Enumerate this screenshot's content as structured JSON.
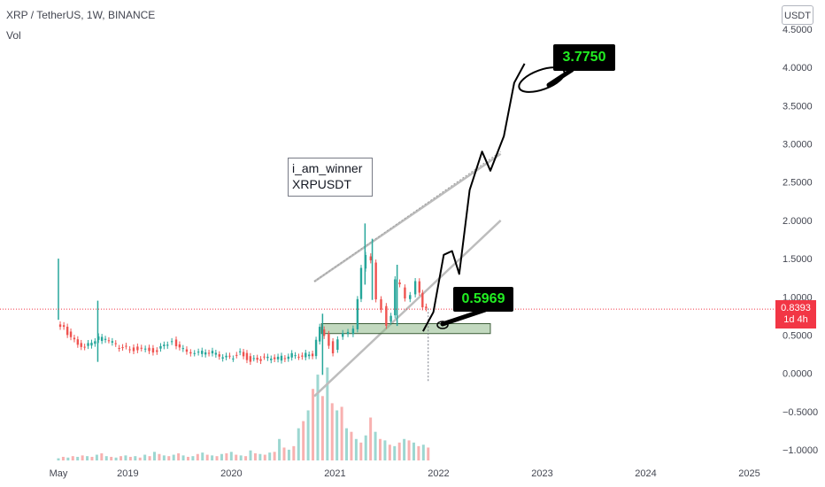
{
  "header": {
    "title": "XRP / TetherUS, 1W, BINANCE",
    "volume_label": "Vol"
  },
  "currency_button": "USDT",
  "current_price": {
    "value": "0.8393",
    "countdown": "1d 4h",
    "color": "#f23645"
  },
  "annotations": {
    "note_line1": "i_am_winner",
    "note_line2": "XRPUSDT",
    "support_label": "0.5969",
    "target_label": "3.7750"
  },
  "chart_data": {
    "type": "candlestick",
    "title": "XRP / TetherUS, 1W, BINANCE",
    "x_tick_labels": [
      "May",
      "2019",
      "2020",
      "2021",
      "2022",
      "2023",
      "2024",
      "2025"
    ],
    "y_tick_labels": [
      "4.5000",
      "4.0000",
      "3.5000",
      "3.0000",
      "2.5000",
      "2.0000",
      "1.5000",
      "1.0000",
      "0.5000",
      "0.0000",
      "−0.5000",
      "−1.0000"
    ],
    "y_range": [
      -1.0,
      4.5
    ],
    "x_range": [
      2018.33,
      2025.5
    ],
    "grid": false,
    "colors": {
      "up": "#26a69a",
      "down": "#ef5350",
      "zone": "#8fb98b"
    },
    "price_path": [
      [
        2018.33,
        0.62
      ],
      [
        2018.4,
        0.58
      ],
      [
        2018.5,
        0.42
      ],
      [
        2018.6,
        0.35
      ],
      [
        2018.7,
        0.45
      ],
      [
        2018.8,
        0.46
      ],
      [
        2018.9,
        0.36
      ],
      [
        2019.0,
        0.33
      ],
      [
        2019.15,
        0.31
      ],
      [
        2019.3,
        0.3
      ],
      [
        2019.4,
        0.38
      ],
      [
        2019.45,
        0.42
      ],
      [
        2019.55,
        0.31
      ],
      [
        2019.7,
        0.27
      ],
      [
        2019.8,
        0.29
      ],
      [
        2019.9,
        0.22
      ],
      [
        2020.0,
        0.2
      ],
      [
        2020.1,
        0.27
      ],
      [
        2020.2,
        0.17
      ],
      [
        2020.3,
        0.19
      ],
      [
        2020.4,
        0.19
      ],
      [
        2020.5,
        0.2
      ],
      [
        2020.6,
        0.25
      ],
      [
        2020.7,
        0.24
      ],
      [
        2020.8,
        0.25
      ],
      [
        2020.87,
        0.58
      ],
      [
        2020.92,
        0.5
      ],
      [
        2021.0,
        0.28
      ],
      [
        2021.05,
        0.45
      ],
      [
        2021.1,
        0.5
      ],
      [
        2021.15,
        0.52
      ],
      [
        2021.2,
        0.6
      ],
      [
        2021.27,
        1.4
      ],
      [
        2021.32,
        1.55
      ],
      [
        2021.37,
        1.45
      ],
      [
        2021.42,
        0.95
      ],
      [
        2021.47,
        0.85
      ],
      [
        2021.52,
        0.65
      ],
      [
        2021.56,
        0.75
      ],
      [
        2021.6,
        1.2
      ],
      [
        2021.65,
        1.15
      ],
      [
        2021.7,
        1.0
      ],
      [
        2021.75,
        1.05
      ],
      [
        2021.8,
        1.2
      ],
      [
        2021.86,
        0.85
      ],
      [
        2021.9,
        0.84
      ]
    ],
    "spikes": [
      [
        2018.33,
        1.5
      ],
      [
        2018.71,
        0.95
      ],
      [
        2020.88,
        0.78
      ],
      [
        2021.29,
        1.96
      ],
      [
        2021.36,
        1.76
      ],
      [
        2021.6,
        1.42
      ]
    ],
    "volume": [
      3,
      5,
      4,
      6,
      5,
      7,
      6,
      5,
      8,
      10,
      6,
      5,
      4,
      6,
      7,
      5,
      6,
      4,
      8,
      6,
      12,
      9,
      7,
      6,
      8,
      10,
      7,
      5,
      6,
      9,
      11,
      8,
      7,
      6,
      9,
      10,
      12,
      8,
      7,
      6,
      14,
      10,
      9,
      8,
      11,
      12,
      30,
      18,
      15,
      20,
      45,
      55,
      70,
      100,
      120,
      90,
      130,
      80,
      70,
      75,
      45,
      40,
      30,
      25,
      35,
      60,
      40,
      30,
      28,
      22,
      20,
      25,
      30,
      28,
      25,
      20,
      22,
      18
    ],
    "channel_upper": [
      [
        2021.1,
        0.1
      ],
      [
        2022.6,
        3.0
      ]
    ],
    "channel_lower": [
      [
        2020.8,
        -0.3
      ],
      [
        2022.6,
        2.0
      ]
    ],
    "channel_outer_upper": [
      [
        2020.8,
        1.2
      ],
      [
        2022.6,
        2.87
      ]
    ],
    "channel_dotted": [
      [
        2020.8,
        1.2
      ],
      [
        2022.6,
        2.9
      ]
    ],
    "support_zone": {
      "x": [
        2020.87,
        2022.5
      ],
      "y": [
        0.52,
        0.65
      ]
    },
    "projection": [
      [
        2021.85,
        0.55
      ],
      [
        2021.95,
        0.8
      ],
      [
        2022.05,
        1.55
      ],
      [
        2022.13,
        1.6
      ],
      [
        2022.2,
        1.3
      ],
      [
        2022.3,
        2.4
      ],
      [
        2022.42,
        2.9
      ],
      [
        2022.5,
        2.65
      ],
      [
        2022.63,
        3.1
      ],
      [
        2022.73,
        3.8
      ],
      [
        2022.83,
        4.05
      ]
    ],
    "current_price_value": 0.8393
  }
}
